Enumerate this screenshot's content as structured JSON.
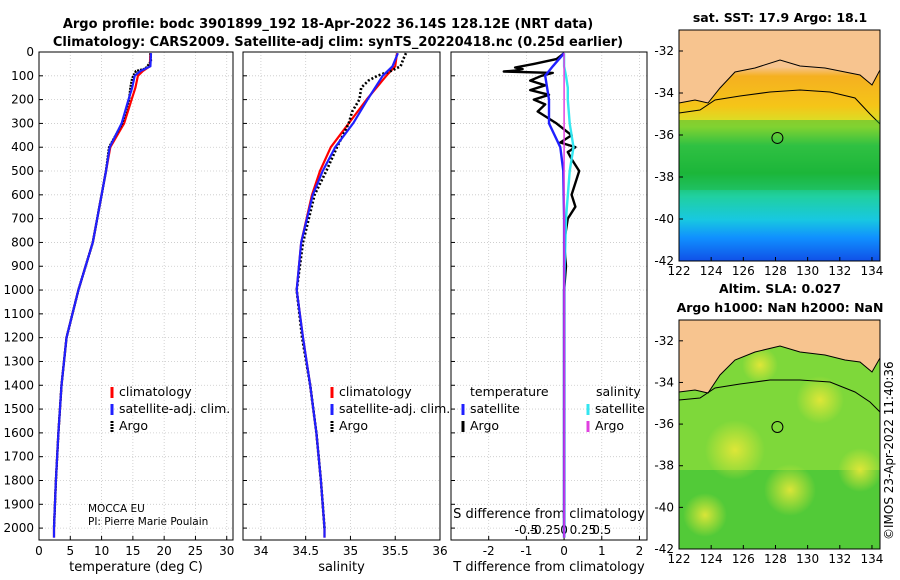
{
  "title_line1": "Argo profile: bodc 3901899_192 18-Apr-2022 36.14S 128.12E (NRT data)",
  "title_line2": "Climatology: CARS2009. Satellite-adj clim: synTS_20220418.nc (0.25d earlier)",
  "colors": {
    "climatology": "#ff0000",
    "satellite": "#2020ff",
    "argo": "#000000",
    "sal_satellite": "#33e6f0",
    "sal_argo": "#e040e0"
  },
  "chart_data": [
    {
      "type": "line",
      "id": "temperature",
      "xlabel": "temperature (deg C)",
      "xlim": [
        0,
        31
      ],
      "ylim": [
        2050,
        0
      ],
      "xticks": [
        0,
        5,
        10,
        15,
        20,
        25,
        30
      ],
      "xtick_labels": [
        "0",
        "5",
        "10",
        "15",
        "20",
        "25",
        "30"
      ],
      "yticks": [
        0,
        100,
        200,
        300,
        400,
        500,
        600,
        700,
        800,
        900,
        1000,
        1100,
        1200,
        1300,
        1400,
        1500,
        1600,
        1700,
        1800,
        1900,
        2000
      ],
      "ytick_labels": [
        "0",
        "100",
        "200",
        "300",
        "400",
        "500",
        "600",
        "700",
        "800",
        "900",
        "1000",
        "1100",
        "1200",
        "1300",
        "1400",
        "1500",
        "1600",
        "1700",
        "1800",
        "1900",
        "2000"
      ],
      "legend": [
        "climatology",
        "satellite-adj. clim.",
        "Argo"
      ],
      "credit1": "MOCCA EU",
      "credit2": "PI: Pierre Marie Poulain",
      "series": [
        {
          "name": "climatology",
          "depth": [
            5,
            60,
            80,
            100,
            150,
            200,
            300,
            400,
            500,
            600,
            800,
            1000,
            1200,
            1400,
            1600,
            1800,
            2000,
            2040
          ],
          "values": [
            17.8,
            17.7,
            16.6,
            15.8,
            15.4,
            14.8,
            13.6,
            11.4,
            10.7,
            10.0,
            8.6,
            6.3,
            4.4,
            3.6,
            3.1,
            2.7,
            2.4,
            2.4
          ]
        },
        {
          "name": "satellite-adj. clim.",
          "depth": [
            5,
            60,
            80,
            100,
            150,
            200,
            300,
            400,
            500,
            600,
            800,
            1000,
            1200,
            1400,
            1600,
            1800,
            2000,
            2040
          ],
          "values": [
            17.9,
            17.8,
            16.2,
            15.3,
            14.9,
            14.3,
            13.2,
            11.3,
            10.7,
            10.0,
            8.6,
            6.3,
            4.4,
            3.6,
            3.1,
            2.7,
            2.4,
            2.4
          ]
        },
        {
          "name": "Argo",
          "depth": [
            5,
            40,
            70,
            80,
            90,
            110,
            150,
            200,
            300,
            400,
            500,
            600,
            800,
            1000,
            1200,
            1400,
            1600,
            1800,
            2000
          ],
          "values": [
            17.8,
            17.9,
            17.0,
            15.5,
            15.3,
            14.9,
            14.6,
            14.4,
            13.3,
            11.2,
            10.7,
            10.0,
            8.6,
            6.3,
            4.4,
            3.6,
            3.1,
            2.7,
            2.4
          ]
        }
      ]
    },
    {
      "type": "line",
      "id": "salinity",
      "xlabel": "salinity",
      "xlim": [
        33.8,
        36.0
      ],
      "ylim": [
        2050,
        0
      ],
      "xticks": [
        34,
        34.5,
        35,
        35.5,
        36
      ],
      "xtick_labels": [
        "34",
        "34.5",
        "35",
        "35.5",
        "36"
      ],
      "legend": [
        "climatology",
        "satellite-adj. clim.",
        "Argo"
      ],
      "series": [
        {
          "name": "climatology",
          "depth": [
            5,
            60,
            100,
            200,
            300,
            400,
            500,
            600,
            800,
            1000,
            1200,
            1400,
            1600,
            1800,
            2000,
            2040
          ],
          "values": [
            35.52,
            35.5,
            35.4,
            35.18,
            34.98,
            34.78,
            34.66,
            34.57,
            34.45,
            34.4,
            34.47,
            34.55,
            34.62,
            34.67,
            34.71,
            34.71
          ]
        },
        {
          "name": "satellite-adj. clim.",
          "depth": [
            5,
            60,
            100,
            200,
            300,
            400,
            500,
            600,
            800,
            1000,
            1200,
            1400,
            1600,
            1800,
            2000,
            2040
          ],
          "values": [
            35.53,
            35.47,
            35.36,
            35.19,
            35.03,
            34.83,
            34.69,
            34.58,
            34.45,
            34.4,
            34.47,
            34.55,
            34.62,
            34.67,
            34.71,
            34.71
          ]
        },
        {
          "name": "Argo",
          "depth": [
            5,
            30,
            60,
            80,
            100,
            120,
            150,
            200,
            250,
            300,
            400,
            500,
            600,
            800,
            1000,
            1200,
            1400,
            1600,
            1800,
            2000
          ],
          "values": [
            35.62,
            35.59,
            35.56,
            35.45,
            35.3,
            35.2,
            35.12,
            35.1,
            35.02,
            34.98,
            34.85,
            34.73,
            34.6,
            34.47,
            34.4,
            34.46,
            34.55,
            34.62,
            34.67,
            34.71
          ]
        }
      ]
    },
    {
      "type": "line",
      "id": "difference",
      "xlabel": "T difference from climatology",
      "xlabel2": "S difference from climatology",
      "xlim": [
        -3.0,
        2.2
      ],
      "ylim": [
        2050,
        0
      ],
      "xticks": [
        -2,
        -1,
        0,
        1,
        2
      ],
      "xtick_labels": [
        "-2",
        "-1",
        "0",
        "1",
        "2"
      ],
      "xticks_s": [
        -1.0,
        -0.5,
        0,
        0.5,
        1.0
      ],
      "xtick_labels_s": [
        "-0.5",
        "-0.25",
        "0",
        "0.25",
        "0.5"
      ],
      "legend_title_t": "temperature",
      "legend_title_s": "salinity",
      "legend_t": [
        "satellite",
        "Argo"
      ],
      "legend_s": [
        "satellite",
        "Argo"
      ],
      "series": [
        {
          "name": "temperature satellite",
          "depth": [
            5,
            60,
            80,
            100,
            150,
            200,
            300,
            400,
            500,
            700,
            900,
            1200,
            1500,
            1800,
            2040
          ],
          "values": [
            0.0,
            -0.3,
            -0.4,
            -0.5,
            -0.45,
            -0.4,
            -0.4,
            -0.1,
            -0.02,
            0.0,
            0.0,
            0.0,
            0.0,
            0.0,
            0.0
          ]
        },
        {
          "name": "temperature Argo",
          "depth": [
            5,
            30,
            50,
            65,
            72,
            78,
            82,
            88,
            100,
            120,
            140,
            160,
            180,
            200,
            220,
            250,
            300,
            350,
            380,
            400,
            420,
            450,
            500,
            550,
            600,
            650,
            700,
            800,
            900,
            1000,
            1200,
            1500,
            1800,
            2000
          ],
          "values": [
            0.0,
            -0.2,
            -0.8,
            -1.3,
            -1.1,
            -1.3,
            -1.6,
            -0.3,
            -0.6,
            -0.9,
            -0.5,
            -0.9,
            -0.4,
            -0.8,
            -0.5,
            -0.7,
            -0.2,
            0.2,
            -0.1,
            0.3,
            0.1,
            0.2,
            0.4,
            0.3,
            0.2,
            0.3,
            0.1,
            0.0,
            0.05,
            0.0,
            0.0,
            0.0,
            0.0,
            0.0
          ]
        },
        {
          "name": "salinity satellite",
          "depth": [
            5,
            60,
            100,
            150,
            200,
            300,
            400,
            500,
            700,
            1000,
            1300,
            1600,
            2040
          ],
          "values": [
            0.0,
            0.0,
            0.05,
            0.1,
            0.1,
            0.15,
            0.25,
            0.15,
            0.05,
            0.0,
            0.0,
            0.0,
            0.0
          ]
        },
        {
          "name": "salinity Argo",
          "depth": [
            5,
            1400,
            2040
          ],
          "values": [
            0.0,
            0.0,
            0.0
          ]
        }
      ]
    },
    {
      "type": "heatmap",
      "id": "sst_map",
      "title": "sat. SST: 17.9 Argo: 18.1",
      "xlim": [
        122,
        134.5
      ],
      "ylim": [
        -42,
        -31
      ],
      "xticks": [
        122,
        124,
        126,
        128,
        130,
        132,
        134
      ],
      "xtick_labels": [
        "122",
        "124",
        "126",
        "128",
        "130",
        "132",
        "134"
      ],
      "yticks": [
        -32,
        -34,
        -36,
        -38,
        -40,
        -42
      ],
      "ytick_labels": [
        "-32",
        "-34",
        "-36",
        "-38",
        "-40",
        "-42"
      ],
      "float_position": [
        128.12,
        -36.14
      ]
    },
    {
      "type": "heatmap",
      "id": "sla_map",
      "title": "Altim. SLA: 0.027",
      "subtitle": "Argo h1000: NaN h2000: NaN",
      "xlim": [
        122,
        134.5
      ],
      "ylim": [
        -42,
        -31
      ],
      "xticks": [
        122,
        124,
        126,
        128,
        130,
        132,
        134
      ],
      "xtick_labels": [
        "122",
        "124",
        "126",
        "128",
        "130",
        "132",
        "134"
      ],
      "yticks": [
        -32,
        -34,
        -36,
        -38,
        -40,
        -42
      ],
      "ytick_labels": [
        "-32",
        "-34",
        "-36",
        "-38",
        "-40",
        "-42"
      ],
      "float_position": [
        128.12,
        -36.14
      ]
    }
  ],
  "footer_stamp": "©IMOS 23-Apr-2022 11:40:36"
}
